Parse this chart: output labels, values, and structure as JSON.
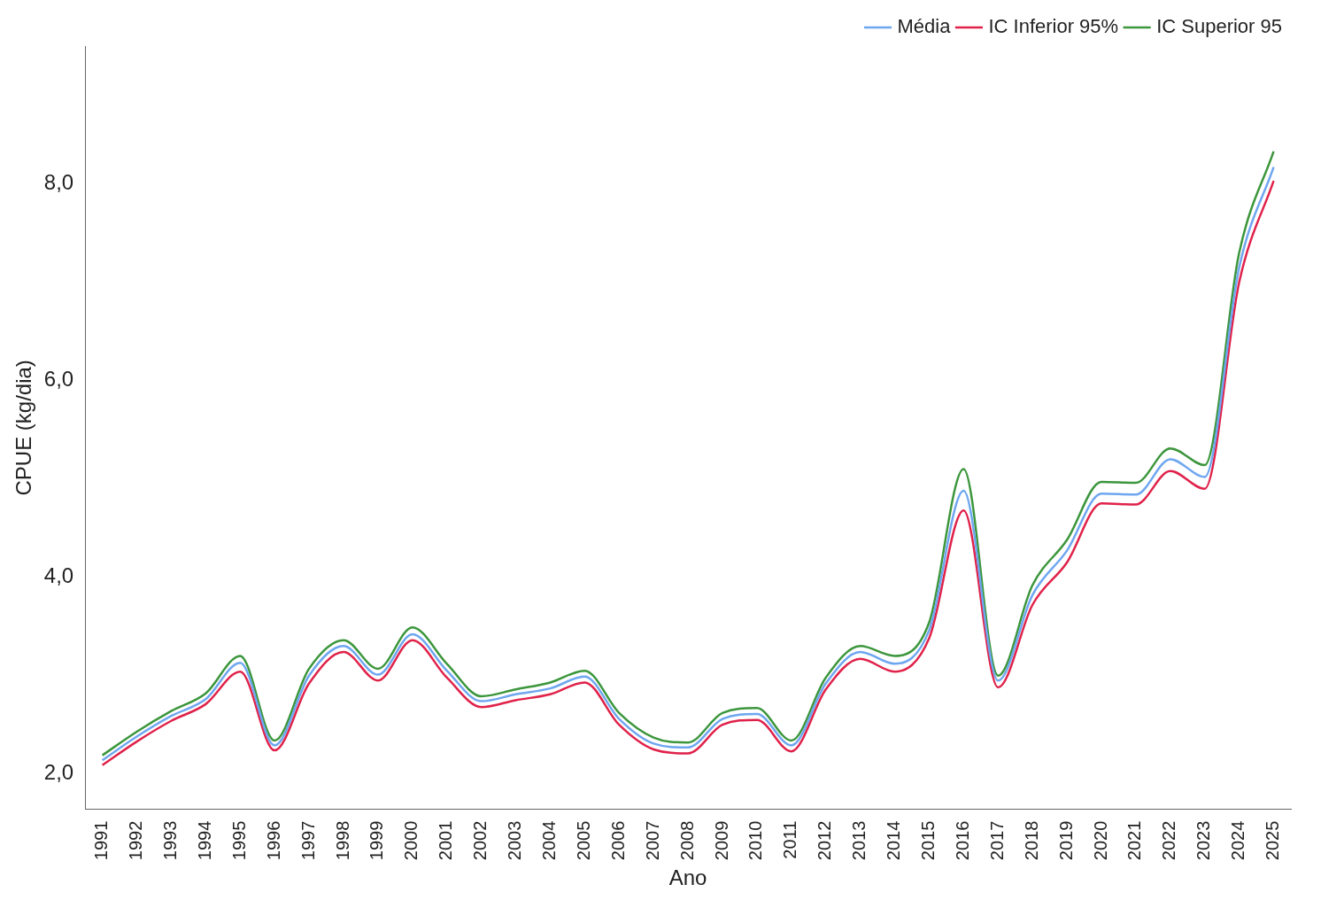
{
  "chart_data": {
    "type": "line",
    "xlabel": "Ano",
    "ylabel": "CPUE (kg/dia)",
    "categories": [
      "1991",
      "1992",
      "1993",
      "1994",
      "1995",
      "1996",
      "1997",
      "1998",
      "1999",
      "2000",
      "2001",
      "2002",
      "2003",
      "2004",
      "2005",
      "2006",
      "2007",
      "2008",
      "2009",
      "2010",
      "2011",
      "2012",
      "2013",
      "2014",
      "2015",
      "2016",
      "2017",
      "2018",
      "2019",
      "2020",
      "2021",
      "2022",
      "2023",
      "2024",
      "2025"
    ],
    "series": [
      {
        "name": "Média",
        "color": "#6ea6f0",
        "values": [
          2.14,
          2.38,
          2.59,
          2.76,
          3.13,
          2.29,
          3.0,
          3.3,
          3.01,
          3.42,
          3.05,
          2.74,
          2.81,
          2.87,
          2.99,
          2.56,
          2.31,
          2.27,
          2.56,
          2.61,
          2.29,
          2.92,
          3.24,
          3.12,
          3.46,
          4.88,
          2.95,
          3.82,
          4.27,
          4.85,
          4.84,
          5.2,
          5.02,
          7.15,
          8.17
        ]
      },
      {
        "name": "IC Inferior 95%",
        "color": "#e0224a",
        "values": [
          2.09,
          2.33,
          2.54,
          2.71,
          3.04,
          2.24,
          2.92,
          3.24,
          2.95,
          3.36,
          2.98,
          2.68,
          2.75,
          2.81,
          2.93,
          2.5,
          2.25,
          2.21,
          2.5,
          2.55,
          2.23,
          2.86,
          3.17,
          3.04,
          3.38,
          4.68,
          2.88,
          3.72,
          4.15,
          4.75,
          4.74,
          5.08,
          4.9,
          7.0,
          8.03
        ]
      },
      {
        "name": "IC Superior 95",
        "color": "#3c963c",
        "values": [
          2.19,
          2.43,
          2.64,
          2.82,
          3.2,
          2.34,
          3.07,
          3.36,
          3.07,
          3.49,
          3.12,
          2.79,
          2.86,
          2.93,
          3.05,
          2.62,
          2.37,
          2.32,
          2.62,
          2.67,
          2.34,
          2.98,
          3.3,
          3.2,
          3.54,
          5.1,
          3.0,
          3.92,
          4.38,
          4.97,
          4.96,
          5.31,
          5.14,
          7.3,
          8.33
        ]
      }
    ],
    "ylim": [
      1.64,
      9.4
    ],
    "yticks": [
      {
        "value": 2,
        "label": "2,0"
      },
      {
        "value": 4,
        "label": "4,0"
      },
      {
        "value": 6,
        "label": "6,0"
      },
      {
        "value": 8,
        "label": "8,0"
      }
    ],
    "grid": false,
    "legend": "top right",
    "marker": "none",
    "line_style": "solid"
  }
}
